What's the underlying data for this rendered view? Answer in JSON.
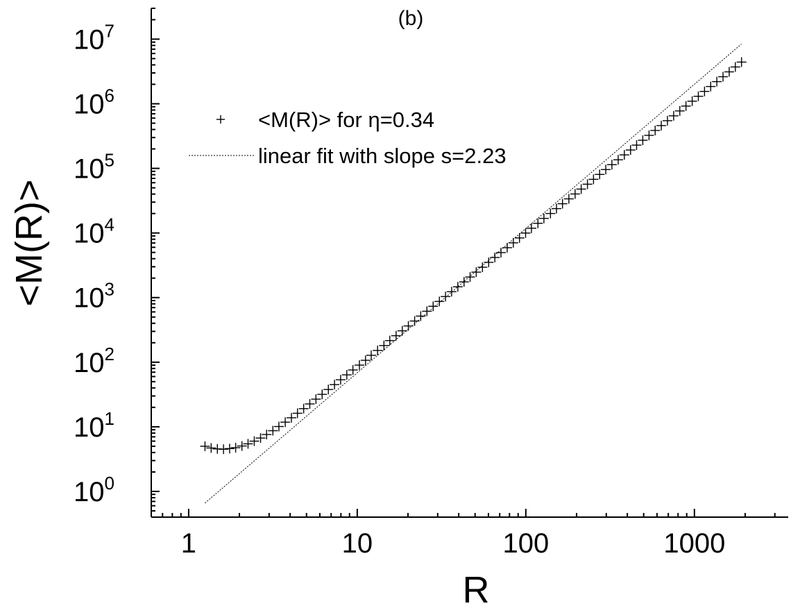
{
  "chart_data": {
    "type": "scatter",
    "panel_label": "(b)",
    "xlabel": "R",
    "ylabel": "<M(R)>",
    "x_scale": "log",
    "y_scale": "log",
    "xlim": [
      0.6,
      3600
    ],
    "ylim": [
      0.4,
      30000000
    ],
    "x_ticks": [
      {
        "value": 1,
        "label": "1"
      },
      {
        "value": 10,
        "label": "10"
      },
      {
        "value": 100,
        "label": "100"
      },
      {
        "value": 1000,
        "label": "1000"
      }
    ],
    "y_ticks": [
      {
        "value": 1,
        "base": "10",
        "exp": "0"
      },
      {
        "value": 10,
        "base": "10",
        "exp": "1"
      },
      {
        "value": 100,
        "base": "10",
        "exp": "2"
      },
      {
        "value": 1000,
        "base": "10",
        "exp": "3"
      },
      {
        "value": 10000,
        "base": "10",
        "exp": "4"
      },
      {
        "value": 100000,
        "base": "10",
        "exp": "5"
      },
      {
        "value": 1000000,
        "base": "10",
        "exp": "6"
      },
      {
        "value": 10000000,
        "base": "10",
        "exp": "7"
      }
    ],
    "grid": false,
    "legend": {
      "placement": "top-left",
      "entries": [
        {
          "marker": "plus",
          "label": "<M(R)> for η=0.34"
        },
        {
          "marker": "dotted-line",
          "label": "linear fit with slope s=2.23"
        }
      ]
    },
    "series": [
      {
        "name": "<M(R)> for η=0.34",
        "style": "plus-marker",
        "x": [
          1.25,
          1.36,
          1.48,
          1.61,
          1.75,
          1.9,
          2.07,
          2.25,
          2.45,
          2.67,
          2.9,
          3.16,
          3.43,
          3.74,
          4.07,
          4.42,
          4.81,
          5.23,
          5.69,
          6.19,
          6.74,
          7.33,
          7.97,
          8.67,
          9.43,
          10.3,
          11.2,
          12.1,
          13.2,
          14.4,
          15.6,
          17.0,
          18.5,
          20.1,
          21.9,
          23.8,
          25.9,
          28.2,
          30.7,
          33.4,
          36.3,
          39.5,
          43.0,
          46.7,
          50.8,
          55.3,
          60.2,
          65.5,
          71.2,
          77.5,
          84.3,
          91.7,
          99.7,
          108,
          118,
          128,
          140,
          152,
          165,
          180,
          196,
          213,
          232,
          252,
          274,
          298,
          324,
          353,
          384,
          418,
          454,
          494,
          538,
          585,
          636,
          692,
          753,
          819,
          891,
          970,
          1055,
          1148,
          1249,
          1358,
          1478,
          1608,
          1749,
          1903
        ],
        "y": [
          5.0,
          4.7,
          4.55,
          4.5,
          4.6,
          4.75,
          5.05,
          5.45,
          6.0,
          6.7,
          7.6,
          8.7,
          10.1,
          11.8,
          13.8,
          16.2,
          19.1,
          22.6,
          26.8,
          31.8,
          37.8,
          45.0,
          53.5,
          63.7,
          75.8,
          90.2,
          107,
          128,
          152,
          181,
          216,
          257,
          306,
          364,
          434,
          517,
          615,
          733,
          872,
          1038,
          1235,
          1470,
          1750,
          2082,
          2478,
          2949,
          3510,
          4178,
          4972,
          5918,
          7043,
          8383,
          9977,
          11870,
          14130,
          16820,
          20020,
          23820,
          28350,
          33740,
          40160,
          47800,
          56890,
          67710,
          80590,
          95900,
          114100,
          135800,
          161700,
          192400,
          229000,
          272500,
          324400,
          386100,
          459500,
          546900,
          650900,
          774700,
          922000,
          1097000,
          1306000,
          1554000,
          1850000,
          2202000,
          2621000,
          3119000,
          3712000,
          4418000
        ]
      },
      {
        "name": "linear fit with slope s=2.23",
        "style": "dotted-line",
        "slope": 2.23,
        "x": [
          1.25,
          1900
        ],
        "y": [
          0.66,
          8400000
        ]
      }
    ]
  }
}
